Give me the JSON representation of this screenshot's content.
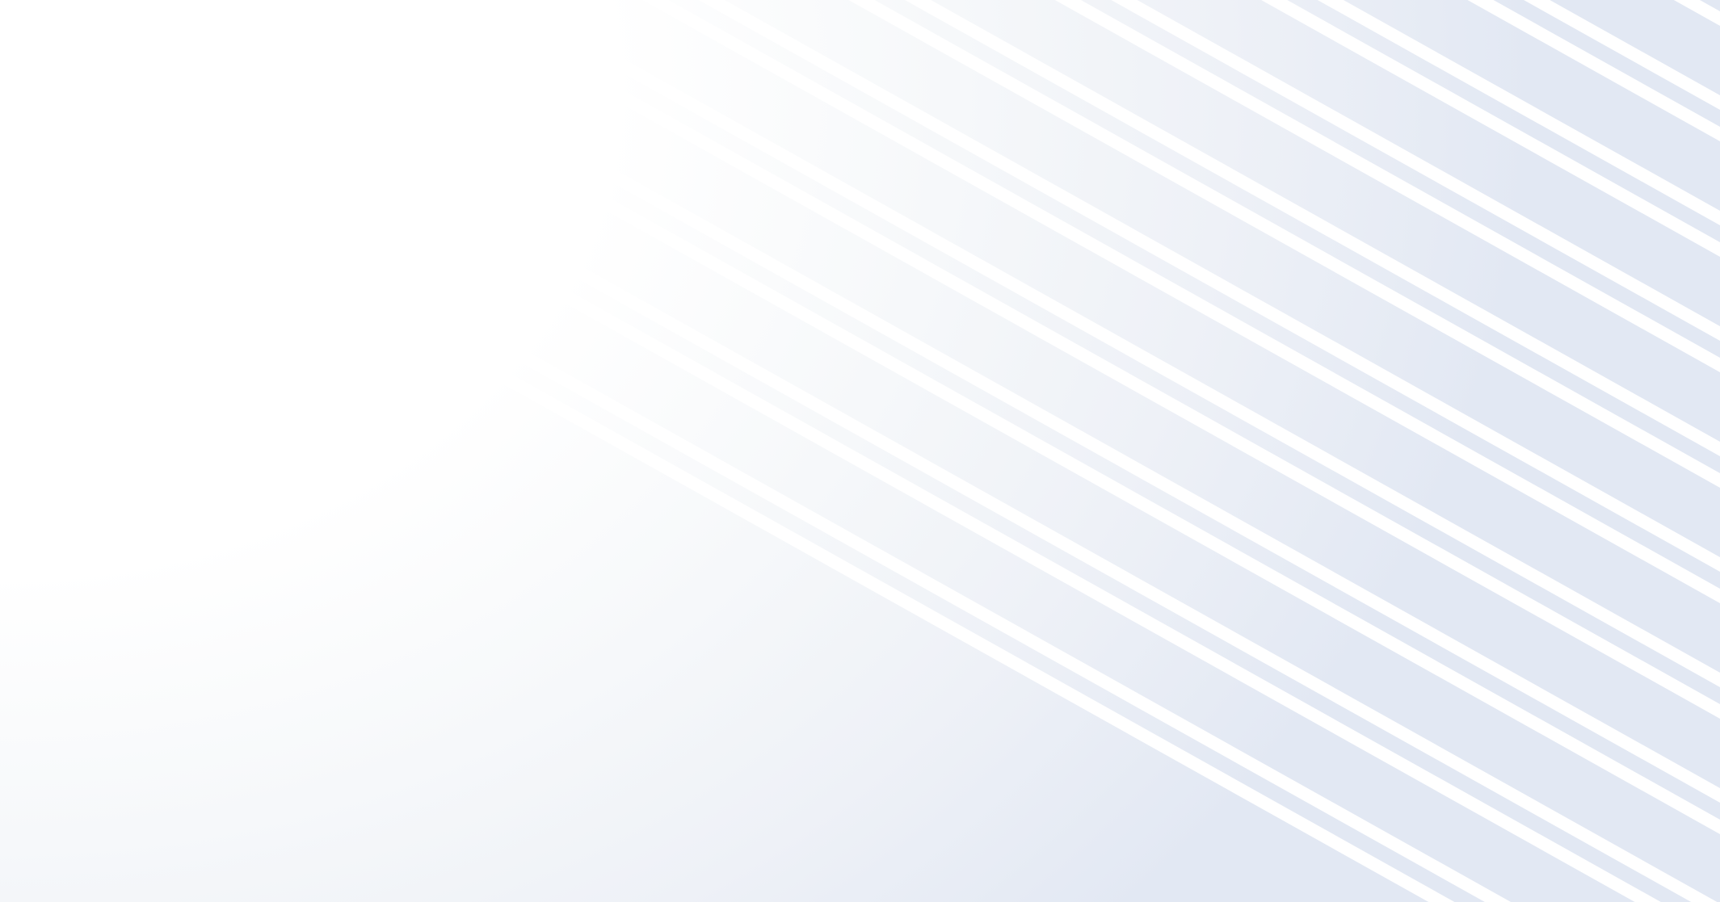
{
  "background": {
    "pattern": "diagonal-stripes",
    "colors": {
      "base": "#ffffff",
      "tint": "#e2e8f3",
      "stripe": "#ffffff"
    }
  }
}
